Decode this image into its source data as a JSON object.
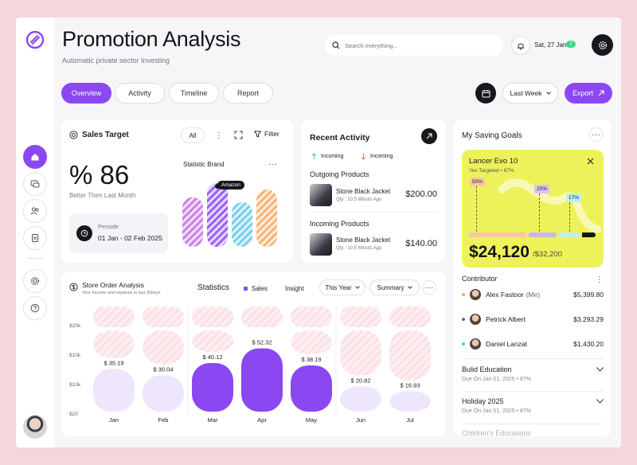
{
  "header": {
    "title": "Promotion Analysis",
    "subtitle": "Automatic private sector Investing",
    "search_placeholder": "Search everything...",
    "date": "Sat, 27 Jan",
    "date_badge": "7"
  },
  "tabs": [
    {
      "label": "Overview",
      "active": true
    },
    {
      "label": "Activity",
      "active": false
    },
    {
      "label": "Timeline",
      "active": false
    },
    {
      "label": "Report",
      "active": false
    }
  ],
  "toolbar": {
    "range": "Last Week",
    "export_label": "Export"
  },
  "sidebar": {
    "items": [
      {
        "icon": "home-icon",
        "active": true
      },
      {
        "icon": "chat-icon",
        "active": false
      },
      {
        "icon": "users-icon",
        "active": false
      },
      {
        "icon": "document-icon",
        "active": false
      },
      {
        "icon": "gear-icon",
        "active": false
      },
      {
        "icon": "help-icon",
        "active": false
      }
    ]
  },
  "sales_target": {
    "title": "Sales Target",
    "filter_all": "All",
    "filter_label": "Filter",
    "value": "% 86",
    "caption": "Better Then Last Month",
    "period_label": "Periode",
    "period_value": "01 Jan - 02 Feb 2025",
    "brand_title": "Statistic Brand",
    "brand_tooltip": "Amazon",
    "brand_bars": [
      {
        "color": "#c46be0",
        "level": 0.78
      },
      {
        "color": "#8b47f2",
        "level": 1.0
      },
      {
        "color": "#5fc8e8",
        "level": 0.7
      },
      {
        "color": "#f3a75d",
        "level": 0.9
      }
    ]
  },
  "recent_activity": {
    "title": "Recent Activity",
    "incoming_up": "Incoming",
    "incoming_down": "Incoming",
    "outgoing_title": "Outgoing Products",
    "outgoing": {
      "name": "Stone Black Jacket",
      "meta": "Qty : 10.5 Minuts Ago",
      "price": "$200.00"
    },
    "incoming_title": "Incoming Products",
    "incoming": {
      "name": "Stone Black Jacket",
      "meta": "Qty : 10.5 Minuts Ago",
      "price": "$140.00"
    }
  },
  "saving_goals": {
    "title": "My Saving Goals",
    "goal_name": "Lancer Evo 10",
    "goal_target": "Yes Targeted • 87%",
    "markers": [
      {
        "label": "50%",
        "level": 0.5
      },
      {
        "label": "20%",
        "level": 0.2
      },
      {
        "label": "17%",
        "level": 0.17
      }
    ],
    "amount": "$24,120",
    "amount_total": "/$32,200",
    "contributor_title": "Contributor",
    "contributors": [
      {
        "name": "Alex Fastoor",
        "tag": "(Me)",
        "amount": "$5,399.80",
        "color": "#f3a75d"
      },
      {
        "name": "Petrick Albert",
        "tag": "",
        "amount": "$3,293.29",
        "color": "#8b47f2"
      },
      {
        "name": "Daniel Lanzat",
        "tag": "",
        "amount": "$1,430.20",
        "color": "#3ed6c0"
      }
    ],
    "goals": [
      {
        "name": "Bulid Education",
        "sub": "Due On Jan 01, 2025 • 87%"
      },
      {
        "name": "Holiday 2025",
        "sub": "Due On Jan 01, 2025 • 87%"
      },
      {
        "name": "Children's Educations",
        "sub": ""
      }
    ]
  },
  "store_order": {
    "title": "Store Order Analysis",
    "subtitle": "Your income and expanse in last 30days",
    "statistics_label": "Statistics",
    "legend_sales": "Sales",
    "legend_insight": "Insight",
    "period_select": "This Year",
    "summary_select": "Summary"
  },
  "chart_data": {
    "type": "bar",
    "categories": [
      "Jan",
      "Feb",
      "Mar",
      "Apr",
      "May",
      "Jun",
      "Jul"
    ],
    "values": [
      35.19,
      30.04,
      40.12,
      52.32,
      38.19,
      20.82,
      16.93
    ],
    "value_labels": [
      "$ 35.19",
      "$ 30.04",
      "$ 40.12",
      "$ 52.32",
      "$ 38.19",
      "$ 20.82",
      "$ 16.93"
    ],
    "highlighted": [
      false,
      false,
      true,
      true,
      true,
      false,
      false
    ],
    "ytick_labels": [
      "$20k",
      "$10k",
      "$10k",
      "$20"
    ],
    "grid": false,
    "colors": {
      "highlight": "#8b47f2",
      "normal": "#eee6fd",
      "hatch": "#fbe3e8"
    }
  }
}
